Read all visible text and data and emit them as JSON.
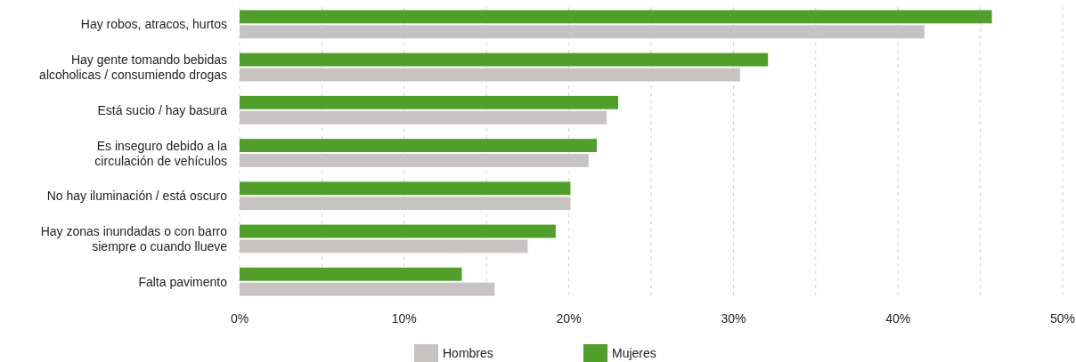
{
  "chart_data": {
    "type": "bar",
    "orientation": "horizontal",
    "categories": [
      "Hay robos, atracos, hurtos",
      "Hay gente tomando bebidas alcoholicas / consumiendo drogas",
      "Está sucio / hay basura",
      "Es inseguro debido a la circulación de vehículos",
      "No hay iluminación / está oscuro",
      "Hay zonas inundadas o con barro siempre o cuando llueve",
      "Falta pavimento"
    ],
    "series": [
      {
        "name": "Hombres",
        "color": "#c7c3c3",
        "values": [
          41.6,
          30.4,
          22.3,
          21.2,
          20.1,
          17.5,
          15.5
        ]
      },
      {
        "name": "Mujeres",
        "color": "#4f9f2a",
        "values": [
          45.7,
          32.1,
          23.0,
          21.7,
          20.1,
          19.2,
          13.5
        ]
      }
    ],
    "xlim": [
      0,
      50
    ],
    "xticks": [
      {
        "value": 0,
        "label": "0%"
      },
      {
        "value": 5,
        "label": null
      },
      {
        "value": 10,
        "label": "10%"
      },
      {
        "value": 15,
        "label": null
      },
      {
        "value": 20,
        "label": "20%"
      },
      {
        "value": 25,
        "label": null
      },
      {
        "value": 30,
        "label": "30%"
      },
      {
        "value": 35,
        "label": null
      },
      {
        "value": 40,
        "label": "40%"
      },
      {
        "value": 45,
        "label": null
      },
      {
        "value": 50,
        "label": "50%"
      }
    ],
    "grid": "x",
    "legend": "bottom"
  }
}
